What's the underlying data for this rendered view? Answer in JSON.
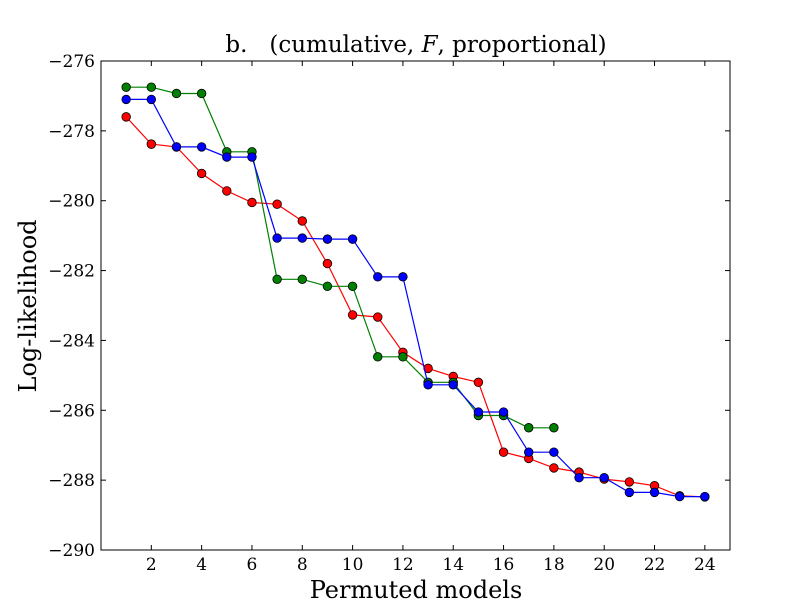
{
  "chart_data": {
    "type": "line",
    "title_prefix": "b.   (cumulative, ",
    "title_italic": "F",
    "title_suffix": ", proportional)",
    "xlabel": "Permuted models",
    "ylabel": "Log-likelihood",
    "xlim": [
      0,
      25
    ],
    "ylim": [
      -290,
      -276
    ],
    "xticks": [
      2,
      4,
      6,
      8,
      10,
      12,
      14,
      16,
      18,
      20,
      22,
      24
    ],
    "yticks": [
      -290,
      -288,
      -286,
      -284,
      -282,
      -280,
      -278,
      -276
    ],
    "ytick_labels": [
      "−290",
      "−288",
      "−286",
      "−284",
      "−282",
      "−280",
      "−278",
      "−276"
    ],
    "series": [
      {
        "name": "red",
        "color": "#ff0000",
        "x": [
          1,
          2,
          3,
          4,
          5,
          6,
          7,
          8,
          9,
          10,
          11,
          12,
          13,
          14,
          15,
          16,
          17,
          18,
          19,
          20,
          21,
          22,
          23,
          24
        ],
        "y": [
          -277.6,
          -278.38,
          -278.46,
          -279.22,
          -279.72,
          -280.05,
          -280.1,
          -280.58,
          -281.8,
          -283.27,
          -283.33,
          -284.34,
          -284.8,
          -285.03,
          -285.2,
          -287.2,
          -287.38,
          -287.65,
          -287.77,
          -287.97,
          -288.05,
          -288.16,
          -288.45,
          -288.48
        ]
      },
      {
        "name": "green",
        "color": "#008000",
        "x": [
          1,
          2,
          3,
          4,
          5,
          6,
          7,
          8,
          9,
          10,
          11,
          12,
          13,
          14,
          15,
          16,
          17,
          18
        ],
        "y": [
          -276.75,
          -276.75,
          -276.93,
          -276.93,
          -278.6,
          -278.6,
          -282.25,
          -282.25,
          -282.45,
          -282.45,
          -284.47,
          -284.47,
          -285.2,
          -285.2,
          -286.15,
          -286.15,
          -286.5,
          -286.5
        ]
      },
      {
        "name": "blue",
        "color": "#0000ff",
        "x": [
          1,
          2,
          3,
          4,
          5,
          6,
          7,
          8,
          9,
          10,
          11,
          12,
          13,
          14,
          15,
          16,
          17,
          18,
          19,
          20,
          21,
          22,
          23,
          24
        ],
        "y": [
          -277.1,
          -277.1,
          -278.46,
          -278.46,
          -278.75,
          -278.75,
          -281.07,
          -281.07,
          -281.1,
          -281.1,
          -282.18,
          -282.18,
          -285.27,
          -285.27,
          -286.05,
          -286.05,
          -287.2,
          -287.2,
          -287.93,
          -287.93,
          -288.35,
          -288.35,
          -288.47,
          -288.47
        ]
      }
    ]
  }
}
